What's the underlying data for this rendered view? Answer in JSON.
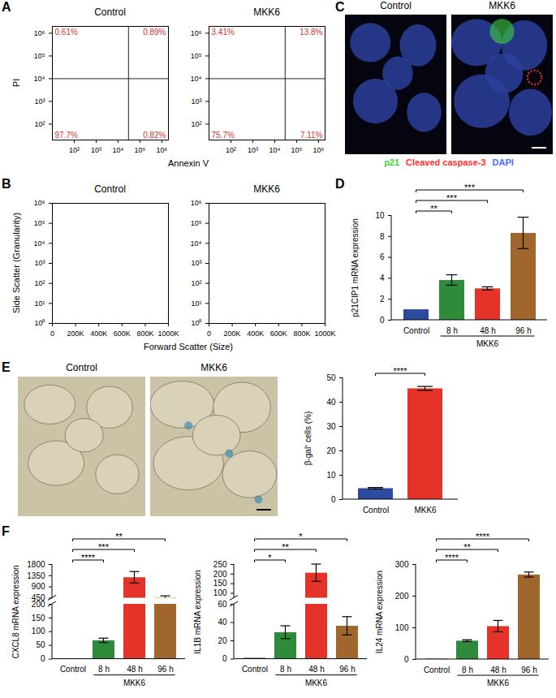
{
  "chart_data": [
    {
      "panel": "A",
      "type": "scatter",
      "x_label": "Annexin V",
      "y_label": "PI",
      "log": true,
      "xlim": [
        10,
        2000000
      ],
      "xticks": [
        {
          "value": 100,
          "label": "10²"
        },
        {
          "value": 1000,
          "label": "10³"
        },
        {
          "value": 10000,
          "label": "10⁴"
        },
        {
          "value": 100000,
          "label": "10⁵"
        },
        {
          "value": 1000000,
          "label": "10⁶"
        }
      ],
      "ylim": [
        20,
        2000000
      ],
      "yticks": [
        {
          "value": 100,
          "label": "10²"
        },
        {
          "value": 1000,
          "label": "10³"
        },
        {
          "value": 10000,
          "label": "10⁴"
        },
        {
          "value": 100000,
          "label": "10⁵"
        },
        {
          "value": 1000000,
          "label": "10⁶"
        }
      ],
      "subplots": [
        {
          "title": "Control",
          "gates": {
            "x": 30000,
            "y": 10000
          },
          "values": [
            0.61,
            0.89,
            97.7,
            0.82
          ],
          "value_labels": [
            "0.61%",
            "0.89%",
            "97.7%",
            "0.82%"
          ]
        },
        {
          "title": "MKK6",
          "gates": {
            "x": 30000,
            "y": 10000
          },
          "values": [
            3.41,
            13.8,
            75.7,
            7.11
          ],
          "value_labels": [
            "3.41%",
            "13.8%",
            "75.7%",
            "7.11%"
          ]
        }
      ]
    },
    {
      "panel": "C",
      "type": "image",
      "titles": [
        "Control",
        "MKK6"
      ],
      "stains": [
        {
          "name": "p21",
          "color": "#3fd13f"
        },
        {
          "name": "Cleaved caspase-3",
          "color": "#ff3030"
        },
        {
          "name": "DAPI",
          "color": "#4a6cff"
        }
      ]
    },
    {
      "panel": "B",
      "type": "scatter",
      "x_label": "Forward Scatter (Size)",
      "y_label": "Side Scatter (Granularity)",
      "log": "y",
      "xlim": [
        0,
        1000000
      ],
      "xticks": [
        0,
        {
          "value": 200000,
          "label": "200K"
        },
        {
          "value": 400000,
          "label": "400K"
        },
        {
          "value": 600000,
          "label": "600K"
        },
        {
          "value": 800000,
          "label": "800K"
        },
        {
          "value": 1000000,
          "label": "1000K"
        }
      ],
      "ylim": [
        1,
        1000000
      ],
      "yticks": [
        {
          "value": 1,
          "label": "10⁰"
        },
        {
          "value": 10,
          "label": "10¹"
        },
        {
          "value": 100,
          "label": "10²"
        },
        {
          "value": 1000,
          "label": "10³"
        },
        {
          "value": 10000,
          "label": "10⁴"
        },
        {
          "value": 100000,
          "label": "10⁵"
        },
        {
          "value": 1000000,
          "label": "10⁶"
        }
      ],
      "subplots": [
        {
          "title": "Control"
        },
        {
          "title": "MKK6"
        }
      ]
    },
    {
      "panel": "D",
      "type": "bar",
      "y_label": "p21CIP1 mRNA expression",
      "categories": [
        "Control",
        "8 h",
        "48 h",
        "96 h"
      ],
      "values": [
        1,
        3.8,
        3.0,
        8.3
      ],
      "errors": [
        0,
        0.5,
        0.15,
        1.5
      ],
      "colors": [
        "#2b4aa0",
        "#2e8b3a",
        "#e5332a",
        "#a0662b"
      ],
      "ylim": [
        0,
        10
      ],
      "yticks": [
        0,
        2,
        4,
        6,
        8,
        10
      ],
      "group": {
        "label": "MKK6",
        "categories": [
          "8 h",
          "48 h",
          "96 h"
        ]
      },
      "significance": [
        {
          "from": "Control",
          "to": "8 h",
          "label": "**"
        },
        {
          "from": "Control",
          "to": "48 h",
          "label": "***"
        },
        {
          "from": "Control",
          "to": "96 h",
          "label": "***"
        }
      ]
    },
    {
      "panel": "E",
      "type": "image",
      "titles": [
        "Control",
        "MKK6"
      ]
    },
    {
      "type": "bar",
      "y_label": "β-gal⁺ cells (%)",
      "categories": [
        "Control",
        "MKK6"
      ],
      "values": [
        4.5,
        45.5
      ],
      "errors": [
        0.3,
        0.8
      ],
      "colors": [
        "#2b4aa0",
        "#e5332a"
      ],
      "ylim": [
        0,
        50
      ],
      "yticks": [
        0,
        10,
        20,
        30,
        40,
        50
      ],
      "significance": [
        {
          "from": "Control",
          "to": "MKK6",
          "label": "****"
        }
      ]
    },
    {
      "panel": "F",
      "type": "bar",
      "y_label": "CXCL8 mRNA expression",
      "categories": [
        "Control",
        "8 h",
        "48 h",
        "96 h"
      ],
      "values": [
        1,
        67,
        1270,
        455
      ],
      "errors": [
        0,
        8,
        230,
        70
      ],
      "colors": [
        "#2b4aa0",
        "#2e8b3a",
        "#e5332a",
        "#a0662b"
      ],
      "segments": [
        {
          "ylim": [
            450,
            1800
          ],
          "yticks": [
            450,
            900,
            1350,
            1800
          ]
        },
        {
          "ylim": [
            0,
            200
          ],
          "yticks": [
            0,
            50,
            100,
            150,
            200
          ]
        }
      ],
      "group": {
        "label": "MKK6",
        "categories": [
          "8 h",
          "48 h",
          "96 h"
        ]
      },
      "significance": [
        {
          "from": "Control",
          "to": "8 h",
          "label": "****"
        },
        {
          "from": "Control",
          "to": "48 h",
          "label": "***"
        },
        {
          "from": "Control",
          "to": "96 h",
          "label": "**"
        }
      ]
    },
    {
      "type": "bar",
      "y_label": "IL1B mRNA expression",
      "categories": [
        "Control",
        "8 h",
        "48 h",
        "96 h"
      ],
      "values": [
        1,
        29,
        205,
        36
      ],
      "errors": [
        0,
        7,
        45,
        10
      ],
      "colors": [
        "#2b4aa0",
        "#2e8b3a",
        "#e5332a",
        "#a0662b"
      ],
      "segments": [
        {
          "ylim": [
            75,
            250
          ],
          "yticks": [
            100,
            150,
            200,
            250
          ]
        },
        {
          "ylim": [
            0,
            60
          ],
          "yticks": [
            0,
            20,
            40,
            60
          ]
        }
      ],
      "group": {
        "label": "MKK6",
        "categories": [
          "8 h",
          "48 h",
          "96 h"
        ]
      },
      "significance": [
        {
          "from": "Control",
          "to": "8 h",
          "label": "*"
        },
        {
          "from": "Control",
          "to": "48 h",
          "label": "**"
        },
        {
          "from": "Control",
          "to": "96 h",
          "label": "*"
        }
      ]
    },
    {
      "type": "bar",
      "y_label": "IL24 mRNA expression",
      "categories": [
        "Control",
        "8 h",
        "48 h",
        "96 h"
      ],
      "values": [
        1,
        58,
        104,
        267
      ],
      "errors": [
        0,
        3,
        18,
        8
      ],
      "colors": [
        "#2b4aa0",
        "#2e8b3a",
        "#e5332a",
        "#a0662b"
      ],
      "ylim": [
        0,
        300
      ],
      "yticks": [
        0,
        100,
        200,
        300
      ],
      "group": {
        "label": "MKK6",
        "categories": [
          "8 h",
          "48 h",
          "96 h"
        ]
      },
      "significance": [
        {
          "from": "Control",
          "to": "8 h",
          "label": "****"
        },
        {
          "from": "Control",
          "to": "48 h",
          "label": "**"
        },
        {
          "from": "Control",
          "to": "96 h",
          "label": "****"
        }
      ]
    }
  ]
}
